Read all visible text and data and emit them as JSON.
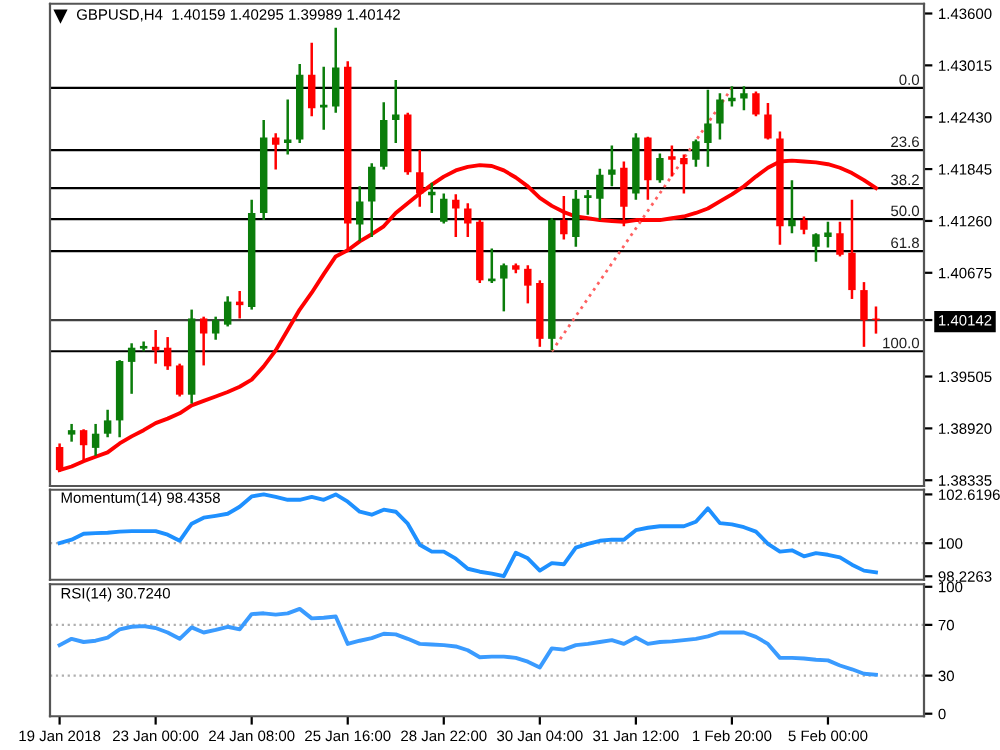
{
  "chart_data": [
    {
      "type": "candlestick",
      "title": "GBPUSD,H4  1.40159 1.40295 1.39989 1.40142",
      "categories": [
        null,
        null,
        null,
        null,
        null,
        null,
        null,
        null,
        null,
        null,
        null,
        null,
        null,
        null,
        null,
        null,
        null,
        null,
        null,
        null,
        null,
        null,
        null,
        null,
        null,
        null,
        null,
        null,
        null,
        null,
        null,
        null,
        null,
        null,
        null,
        null,
        null,
        null,
        null,
        null,
        null,
        null,
        null,
        null,
        null,
        null,
        null,
        null,
        null,
        null,
        null,
        null,
        null,
        null,
        null,
        null,
        null,
        null,
        null,
        null,
        null,
        null,
        null,
        null,
        null,
        null,
        null,
        null,
        null
      ],
      "ohlc": [
        [
          1.3871,
          1.3875,
          1.3843,
          1.3845
        ],
        [
          1.3885,
          1.3897,
          1.3877,
          1.389
        ],
        [
          1.389,
          1.3891,
          1.3856,
          1.3873
        ],
        [
          1.387,
          1.3897,
          1.3861,
          1.3886
        ],
        [
          1.3886,
          1.3913,
          1.3882,
          1.3901
        ],
        [
          1.3901,
          1.3969,
          1.3882,
          1.3968
        ],
        [
          1.3967,
          1.3988,
          1.3931,
          1.3983
        ],
        [
          1.3982,
          1.399,
          1.3979,
          1.3985
        ],
        [
          1.3984,
          1.4003,
          1.3965,
          1.398
        ],
        [
          1.3983,
          1.3995,
          1.3958,
          1.3962
        ],
        [
          1.3963,
          1.3965,
          1.3928,
          1.393
        ],
        [
          1.393,
          1.4026,
          1.392,
          1.4016
        ],
        [
          1.4016,
          1.4018,
          1.3963,
          1.3999
        ],
        [
          1.3999,
          1.4018,
          1.3992,
          1.4014
        ],
        [
          1.4009,
          1.4041,
          1.4007,
          1.4035
        ],
        [
          1.4035,
          1.4047,
          1.4016,
          1.4031
        ],
        [
          1.4029,
          1.415,
          1.4026,
          1.4135
        ],
        [
          1.4135,
          1.424,
          1.4127,
          1.422
        ],
        [
          1.422,
          1.4225,
          1.4184,
          1.4212
        ],
        [
          1.4214,
          1.4263,
          1.4201,
          1.4218
        ],
        [
          1.4218,
          1.4303,
          1.4214,
          1.4291
        ],
        [
          1.4291,
          1.4327,
          1.4244,
          1.4253
        ],
        [
          1.4254,
          1.43,
          1.4229,
          1.4257
        ],
        [
          1.4255,
          1.4344,
          1.4248,
          1.4299
        ],
        [
          1.43,
          1.4306,
          1.4093,
          1.4123
        ],
        [
          1.4122,
          1.4165,
          1.4103,
          1.4148
        ],
        [
          1.4148,
          1.4191,
          1.4108,
          1.4187
        ],
        [
          1.4187,
          1.426,
          1.4184,
          1.424
        ],
        [
          1.424,
          1.4285,
          1.4214,
          1.4246
        ],
        [
          1.4246,
          1.4248,
          1.4178,
          1.4181
        ],
        [
          1.4181,
          1.4206,
          1.4142,
          1.4157
        ],
        [
          1.4155,
          1.4169,
          1.4135,
          1.4159
        ],
        [
          1.4125,
          1.4157,
          1.4123,
          1.4151
        ],
        [
          1.415,
          1.4156,
          1.4108,
          1.414
        ],
        [
          1.414,
          1.4146,
          1.4108,
          1.4123
        ],
        [
          1.4125,
          1.4127,
          1.4056,
          1.4059
        ],
        [
          1.4058,
          1.4095,
          1.4056,
          1.4061
        ],
        [
          1.4061,
          1.4078,
          1.4024,
          1.4076
        ],
        [
          1.4076,
          1.4078,
          1.4067,
          1.4071
        ],
        [
          1.4072,
          1.4076,
          1.4033,
          1.4053
        ],
        [
          1.4056,
          1.4059,
          1.3984,
          1.3993
        ],
        [
          1.3993,
          1.4129,
          1.398,
          1.4127
        ],
        [
          1.4127,
          1.4154,
          1.4105,
          1.4111
        ],
        [
          1.4108,
          1.4161,
          1.4097,
          1.4151
        ],
        [
          1.4152,
          1.4161,
          1.4133,
          1.4155
        ],
        [
          1.4151,
          1.4185,
          1.4127,
          1.4178
        ],
        [
          1.4178,
          1.4211,
          1.4165,
          1.4184
        ],
        [
          1.4186,
          1.4193,
          1.412,
          1.4142
        ],
        [
          1.4157,
          1.4225,
          1.415,
          1.422
        ],
        [
          1.422,
          1.4221,
          1.415,
          1.4172
        ],
        [
          1.4172,
          1.4202,
          1.4169,
          1.4197
        ],
        [
          1.4199,
          1.4211,
          1.4176,
          1.4195
        ],
        [
          1.4197,
          1.4201,
          1.4157,
          1.419
        ],
        [
          1.4195,
          1.4218,
          1.4187,
          1.4216
        ],
        [
          1.4214,
          1.4274,
          1.4187,
          1.4236
        ],
        [
          1.4236,
          1.427,
          1.4218,
          1.4263
        ],
        [
          1.4261,
          1.4278,
          1.4255,
          1.4265
        ],
        [
          1.4264,
          1.4278,
          1.4251,
          1.427
        ],
        [
          1.427,
          1.4272,
          1.4244,
          1.4246
        ],
        [
          1.4246,
          1.4259,
          1.4218,
          1.4219
        ],
        [
          1.4219,
          1.4227,
          1.4099,
          1.412
        ],
        [
          1.412,
          1.4172,
          1.4112,
          1.4127
        ],
        [
          1.4127,
          1.4131,
          1.4111,
          1.4116
        ],
        [
          1.4097,
          1.4112,
          1.408,
          1.4111
        ],
        [
          1.4108,
          1.4125,
          1.4096,
          1.4113
        ],
        [
          1.4112,
          1.4125,
          1.4086,
          1.4088
        ],
        [
          1.409,
          1.415,
          1.4038,
          1.4048
        ],
        [
          1.4048,
          1.4057,
          1.3984,
          1.4014
        ],
        [
          1.40159,
          1.40295,
          1.39989,
          1.40142
        ]
      ],
      "colors": [
        "#ff0000",
        "#0b7d0b",
        "#ff0000",
        "#0b7d0b",
        "#0b7d0b",
        "#0b7d0b",
        "#0b7d0b",
        "#0b7d0b",
        "#ff0000",
        "#ff0000",
        "#ff0000",
        "#0b7d0b",
        "#ff0000",
        "#0b7d0b",
        "#0b7d0b",
        "#ff0000",
        "#0b7d0b",
        "#0b7d0b",
        "#ff0000",
        "#0b7d0b",
        "#0b7d0b",
        "#ff0000",
        "#0b7d0b",
        "#0b7d0b",
        "#ff0000",
        "#0b7d0b",
        "#0b7d0b",
        "#0b7d0b",
        "#0b7d0b",
        "#ff0000",
        "#ff0000",
        "#0b7d0b",
        "#0b7d0b",
        "#ff0000",
        "#ff0000",
        "#ff0000",
        "#0b7d0b",
        "#0b7d0b",
        "#ff0000",
        "#ff0000",
        "#ff0000",
        "#0b7d0b",
        "#ff0000",
        "#0b7d0b",
        "#0b7d0b",
        "#0b7d0b",
        "#0b7d0b",
        "#ff0000",
        "#0b7d0b",
        "#ff0000",
        "#0b7d0b",
        "#ff0000",
        "#ff0000",
        "#0b7d0b",
        "#0b7d0b",
        "#0b7d0b",
        "#0b7d0b",
        "#0b7d0b",
        "#ff0000",
        "#ff0000",
        "#ff0000",
        "#0b7d0b",
        "#ff0000",
        "#0b7d0b",
        "#0b7d0b",
        "#ff0000",
        "#ff0000",
        "#ff0000",
        "#ff0000"
      ],
      "series": [
        {
          "type": "line",
          "color": "#ff0000",
          "values": [
            1.3845,
            1.3849,
            1.3855,
            1.386,
            1.3865,
            1.3875,
            1.3883,
            1.389,
            1.3898,
            1.3903,
            1.3909,
            1.3918,
            1.3923,
            1.3928,
            1.3933,
            1.3939,
            1.3947,
            1.3962,
            1.398,
            1.4003,
            1.4026,
            1.4045,
            1.4066,
            1.4086,
            1.4093,
            1.4103,
            1.4111,
            1.412,
            1.4135,
            1.4146,
            1.4157,
            1.4167,
            1.4176,
            1.4183,
            1.4187,
            1.4189,
            1.4188,
            1.4183,
            1.4175,
            1.4165,
            1.4152,
            1.4143,
            1.4136,
            1.4131,
            1.4129,
            1.4127,
            1.4126,
            1.4125,
            1.4127,
            1.4127,
            1.4127,
            1.4129,
            1.4131,
            1.4135,
            1.414,
            1.4148,
            1.4156,
            1.4165,
            1.4176,
            1.4186,
            1.4193,
            1.4194,
            1.4193,
            1.4192,
            1.419,
            1.4186,
            1.418,
            1.4172,
            1.4163
          ]
        },
        {
          "type": "line",
          "color": "#ff6060",
          "line_style": "dotted",
          "values": [
            null,
            null,
            null,
            null,
            null,
            null,
            null,
            null,
            null,
            null,
            null,
            null,
            null,
            null,
            null,
            null,
            null,
            null,
            null,
            null,
            null,
            null,
            null,
            null,
            null,
            null,
            null,
            null,
            null,
            null,
            null,
            null,
            null,
            null,
            null,
            null,
            null,
            null,
            null,
            null,
            null,
            1.3979,
            null,
            null,
            null,
            null,
            null,
            null,
            null,
            null,
            null,
            null,
            null,
            null,
            null,
            null,
            1.4276,
            null,
            null,
            null,
            null,
            null,
            null,
            null,
            null,
            null,
            null,
            null,
            null
          ]
        }
      ],
      "annotations": [
        {
          "text": "0.0",
          "y": 1.4276
        },
        {
          "text": "23.6",
          "y": 1.4206
        },
        {
          "text": "38.2",
          "y": 1.4163
        },
        {
          "text": "50.0",
          "y": 1.4128
        },
        {
          "text": "61.8",
          "y": 1.4092
        },
        {
          "text": "100.0",
          "y": 1.3979
        }
      ],
      "ref_lines": [
        {
          "axis": "y",
          "value": 1.4276,
          "color": "#000000"
        },
        {
          "axis": "y",
          "value": 1.4206,
          "color": "#000000"
        },
        {
          "axis": "y",
          "value": 1.4163,
          "color": "#000000"
        },
        {
          "axis": "y",
          "value": 1.4128,
          "color": "#000000"
        },
        {
          "axis": "y",
          "value": 1.4092,
          "color": "#000000"
        },
        {
          "axis": "y",
          "value": 1.3979,
          "color": "#000000"
        },
        {
          "axis": "y",
          "value": 1.40142,
          "color": "#404040"
        }
      ],
      "ylim": [
        1.3827,
        1.4371
      ],
      "yticks": [
        {
          "value": 1.436,
          "label": "1.43600"
        },
        {
          "value": 1.43015,
          "label": "1.43015"
        },
        {
          "value": 1.4243,
          "label": "1.42430"
        },
        {
          "value": 1.41845,
          "label": "1.41845"
        },
        {
          "value": 1.4126,
          "label": "1.41260"
        },
        {
          "value": 1.40675,
          "label": "1.40675"
        },
        {
          "value": 1.40142,
          "label": "1.40142"
        },
        {
          "value": 1.39505,
          "label": "1.39505"
        },
        {
          "value": 1.3892,
          "label": "1.38920"
        },
        {
          "value": 1.38335,
          "label": "1.38335"
        }
      ],
      "tick_labels": "y"
    },
    {
      "type": "line",
      "title": "Momentum(14) 98.4358",
      "categories": [
        null,
        null,
        null,
        null,
        null,
        null,
        null,
        null,
        null,
        null,
        null,
        null,
        null,
        null,
        null,
        null,
        null,
        null,
        null,
        null,
        null,
        null,
        null,
        null,
        null,
        null,
        null,
        null,
        null,
        null,
        null,
        null,
        null,
        null,
        null,
        null,
        null,
        null,
        null,
        null,
        null,
        null,
        null,
        null,
        null,
        null,
        null,
        null,
        null,
        null,
        null,
        null,
        null,
        null,
        null,
        null,
        null,
        null,
        null,
        null,
        null,
        null,
        null,
        null,
        null,
        null,
        null,
        null,
        null
      ],
      "series": [
        {
          "color": "#1e90ff",
          "values": [
            100.01,
            100.19,
            100.51,
            100.54,
            100.56,
            100.62,
            100.65,
            100.65,
            100.65,
            100.46,
            100.13,
            101.05,
            101.37,
            101.47,
            101.58,
            101.96,
            102.51,
            102.62,
            102.49,
            102.33,
            102.33,
            102.49,
            102.33,
            102.62,
            102.23,
            101.69,
            101.53,
            101.8,
            101.69,
            101.05,
            99.92,
            99.55,
            99.55,
            99.17,
            98.63,
            98.47,
            98.37,
            98.23,
            99.49,
            99.19,
            98.53,
            98.93,
            98.87,
            99.76,
            99.97,
            100.13,
            100.19,
            100.19,
            100.7,
            100.83,
            100.91,
            100.91,
            100.91,
            101.15,
            101.87,
            101.08,
            101.01,
            100.86,
            100.62,
            99.97,
            99.55,
            99.62,
            99.3,
            99.47,
            99.38,
            99.24,
            98.85,
            98.53,
            98.4358
          ]
        }
      ],
      "ref_lines": [
        {
          "axis": "y",
          "value": 100,
          "color": "#b0b0b0",
          "line_style": "dotted"
        }
      ],
      "ylim": [
        98.04,
        102.87
      ],
      "yticks": [
        102.6196,
        100,
        98.2263
      ],
      "tick_labels": "y"
    },
    {
      "type": "line",
      "title": "RSI(14) 30.7240",
      "categories": [
        "19 Jan 2018",
        null,
        null,
        null,
        null,
        null,
        null,
        null,
        "23 Jan 00:00",
        null,
        null,
        null,
        null,
        null,
        null,
        null,
        "24 Jan 08:00",
        null,
        null,
        null,
        null,
        null,
        null,
        null,
        "25 Jan 16:00",
        null,
        null,
        null,
        null,
        null,
        null,
        null,
        "28 Jan 22:00",
        null,
        null,
        null,
        null,
        null,
        null,
        null,
        "30 Jan 04:00",
        null,
        null,
        null,
        null,
        null,
        null,
        null,
        "31 Jan 12:00",
        null,
        null,
        null,
        null,
        null,
        null,
        null,
        "1 Feb 20:00",
        null,
        null,
        null,
        null,
        null,
        null,
        null,
        "5 Feb 00:00",
        null,
        null,
        null,
        null
      ],
      "series": [
        {
          "color": "#3a9bff",
          "values": [
            54.0,
            59.0,
            56.5,
            57.5,
            60.0,
            66.5,
            68.5,
            69.0,
            67.5,
            64.0,
            59.0,
            68.0,
            64.0,
            66.0,
            68.5,
            66.5,
            78.5,
            79.1,
            78.1,
            79.1,
            82.6,
            75.1,
            75.6,
            76.6,
            55.0,
            57.5,
            59.5,
            63.0,
            62.5,
            59.0,
            55.0,
            54.5,
            54.0,
            53.0,
            50.0,
            44.5,
            45.0,
            45.0,
            44.0,
            41.0,
            36.5,
            51.5,
            50.5,
            54.0,
            55.0,
            56.5,
            58.0,
            55.0,
            60.0,
            55.0,
            56.5,
            57.0,
            58.0,
            59.0,
            61.0,
            64.0,
            64.0,
            64.0,
            60.5,
            55.0,
            44.0,
            44.0,
            43.5,
            42.5,
            42.0,
            38.0,
            35.0,
            31.5,
            30.724
          ]
        }
      ],
      "ref_lines": [
        {
          "axis": "y",
          "value": 70,
          "color": "#b0b0b0",
          "line_style": "dotted"
        },
        {
          "axis": "y",
          "value": 30,
          "color": "#b0b0b0",
          "line_style": "dotted"
        }
      ],
      "ylim": [
        -2,
        102
      ],
      "yticks": [
        100,
        70,
        30,
        0
      ]
    }
  ]
}
